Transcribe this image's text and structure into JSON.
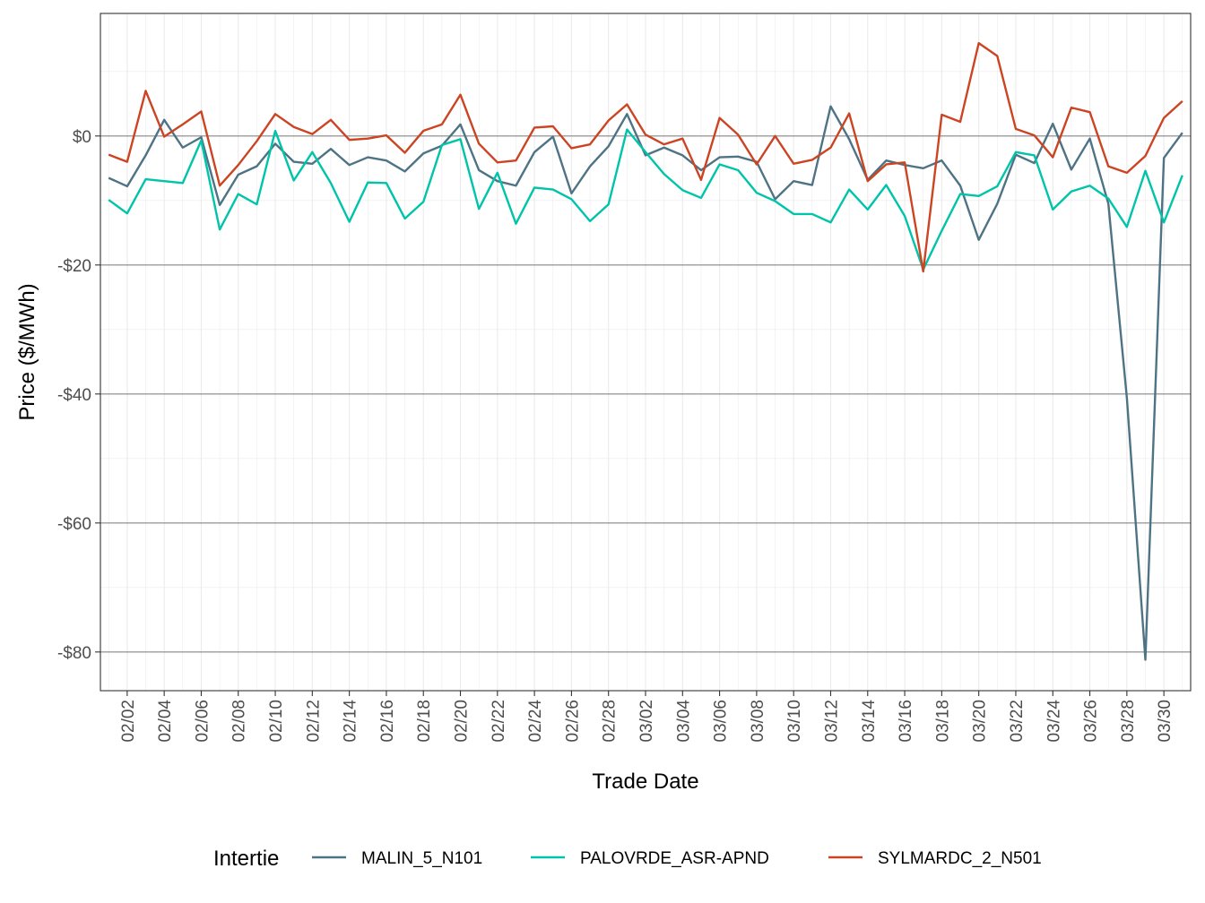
{
  "chart_data": {
    "type": "line",
    "xlabel": "Trade Date",
    "ylabel": "Price ($/MWh)",
    "x_start": "02/01",
    "x_tick_labels": [
      "02/02",
      "02/04",
      "02/06",
      "02/08",
      "02/10",
      "02/12",
      "02/14",
      "02/16",
      "02/18",
      "02/20",
      "02/22",
      "02/24",
      "02/26",
      "02/28",
      "03/02",
      "03/04",
      "03/06",
      "03/08",
      "03/10",
      "03/12",
      "03/14",
      "03/16",
      "03/18",
      "03/20",
      "03/22",
      "03/24",
      "03/26",
      "03/28",
      "03/30"
    ],
    "y_ticks": [
      0,
      -20,
      -40,
      -60,
      -80
    ],
    "y_tick_labels": [
      "$0",
      "-$20",
      "-$40",
      "-$60",
      "-$80"
    ],
    "ylim": [
      -86,
      19
    ],
    "grid": true,
    "legend": {
      "title": "Intertie",
      "position": "bottom"
    },
    "series": [
      {
        "name": "MALIN_5_N101",
        "color": "#4e7385",
        "values": [
          -6.5,
          -7.8,
          -3,
          2.5,
          -1.8,
          -0.2,
          -10.7,
          -6,
          -4.7,
          -1.2,
          -4,
          -4.3,
          -2,
          -4.5,
          -3.3,
          -3.8,
          -5.5,
          -2.7,
          -1.5,
          1.8,
          -5.3,
          -7,
          -7.7,
          -2.5,
          -0.1,
          -8.9,
          -4.7,
          -1.6,
          3.4,
          -3,
          -1.8,
          -3,
          -5.3,
          -3.3,
          -3.2,
          -4,
          -9.8,
          -7,
          -7.6,
          4.6,
          -0.5,
          -6.8,
          -3.8,
          -4.5,
          -5,
          -3.8,
          -7.7,
          -16.1,
          -10.5,
          -2.9,
          -4.2,
          1.9,
          -5.2,
          -0.4,
          -10.5,
          -40.6,
          -81.2,
          -3.4,
          0.5
        ]
      },
      {
        "name": "PALOVRDE_ASR-APND",
        "color": "#00c4aa",
        "values": [
          -9.9,
          -12,
          -6.7,
          -7,
          -7.3,
          -0.7,
          -14.5,
          -9,
          -10.6,
          0.8,
          -6.9,
          -2.5,
          -7.3,
          -13.3,
          -7.2,
          -7.3,
          -12.8,
          -10.2,
          -1.4,
          -0.5,
          -11.3,
          -5.7,
          -13.6,
          -8,
          -8.3,
          -9.8,
          -13.2,
          -10.6,
          1,
          -2.5,
          -5.9,
          -8.4,
          -9.6,
          -4.4,
          -5.3,
          -8.8,
          -10.1,
          -12.1,
          -12.1,
          -13.4,
          -8.3,
          -11.4,
          -7.6,
          -12.4,
          -20.7,
          -14.7,
          -9,
          -9.3,
          -7.8,
          -2.5,
          -3,
          -11.4,
          -8.6,
          -7.7,
          -9.7,
          -14.1,
          -5.4,
          -13.4,
          -6.1
        ]
      },
      {
        "name": "SYLMARDC_2_N501",
        "color": "#cc4422",
        "values": [
          -2.9,
          -4,
          7,
          -0.1,
          1.8,
          3.8,
          -7.7,
          -4.5,
          -0.8,
          3.4,
          1.4,
          0.3,
          2.5,
          -0.6,
          -0.4,
          0.1,
          -2.6,
          0.8,
          1.8,
          6.4,
          -1.2,
          -4.1,
          -3.8,
          1.3,
          1.5,
          -1.9,
          -1.3,
          2.4,
          4.9,
          0.2,
          -1.3,
          -0.4,
          -6.8,
          2.8,
          0.2,
          -4.4,
          0,
          -4.3,
          -3.7,
          -1.8,
          3.5,
          -7,
          -4.4,
          -4.1,
          -21,
          3.3,
          2.2,
          14.4,
          12.4,
          1.1,
          0.1,
          -3.3,
          4.4,
          3.7,
          -4.7,
          -5.7,
          -3.1,
          2.8,
          5.4
        ]
      }
    ]
  }
}
